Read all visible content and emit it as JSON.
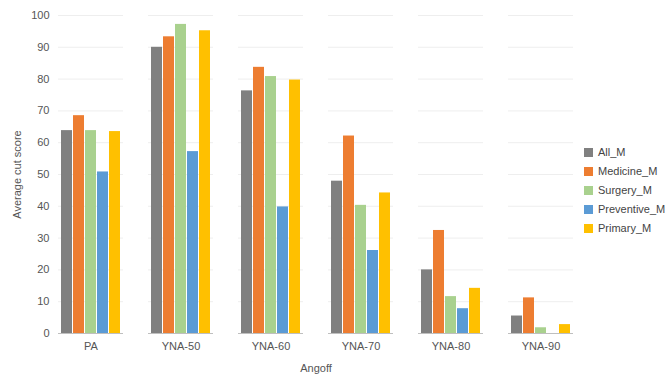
{
  "chart_data": {
    "type": "bar",
    "x_label": "Angoff",
    "y_label": "Average cut score",
    "categories": [
      "PA",
      "YNA-50",
      "YNA-60",
      "YNA-70",
      "YNA-80",
      "YNA-90"
    ],
    "series": [
      {
        "name": "All_M",
        "color": "#808080",
        "values": [
          63.8,
          90,
          76.3,
          47.9,
          20,
          5.5
        ]
      },
      {
        "name": "Medicine_M",
        "color": "#ed7d31",
        "values": [
          68.5,
          93.3,
          83.7,
          62.1,
          32.4,
          11.2
        ]
      },
      {
        "name": "Surgery_M",
        "color": "#a9d18e",
        "values": [
          63.8,
          97.2,
          80.8,
          40.3,
          11.6,
          1.8
        ]
      },
      {
        "name": "Preventive_M",
        "color": "#5b9bd5",
        "values": [
          50.8,
          57.2,
          39.8,
          26.1,
          7.8,
          0
        ]
      },
      {
        "name": "Primary_M",
        "color": "#ffc000",
        "values": [
          63.5,
          95.2,
          79.7,
          44.2,
          14.2,
          2.8
        ]
      }
    ],
    "ylim": [
      0,
      100
    ],
    "yticks": [
      0,
      10,
      20,
      30,
      40,
      50,
      60,
      70,
      80,
      90,
      100
    ],
    "grid": true,
    "legend": "right"
  }
}
